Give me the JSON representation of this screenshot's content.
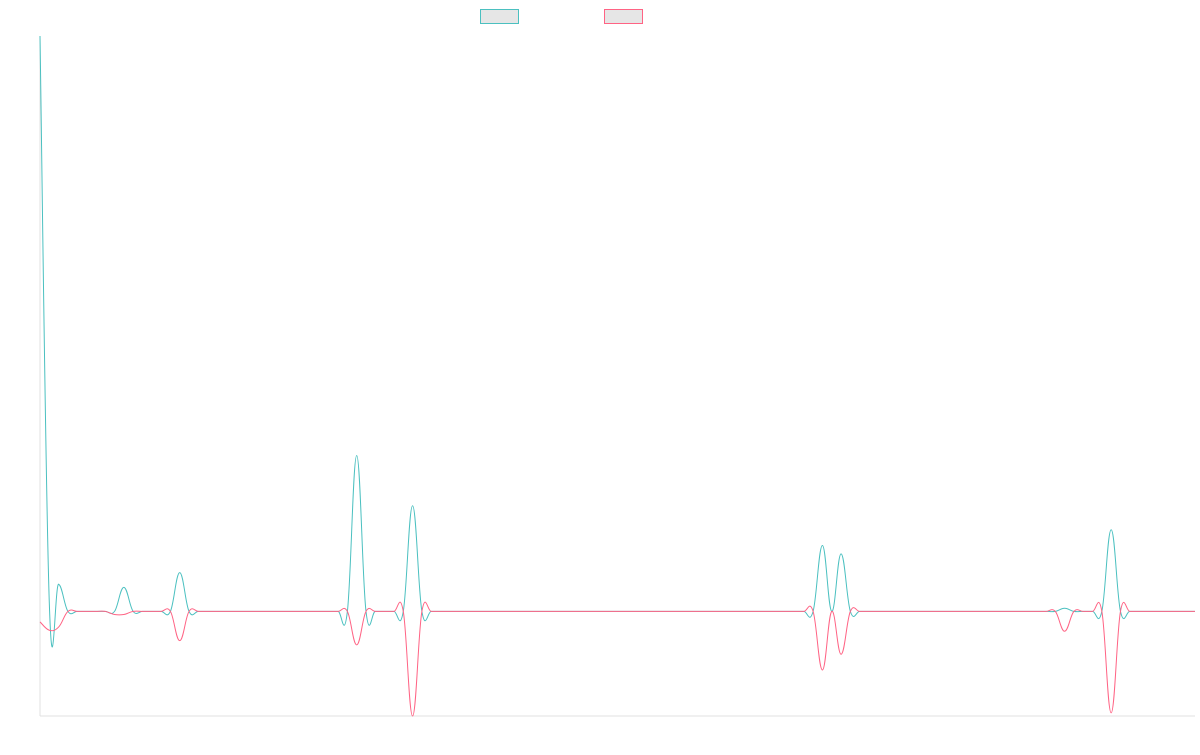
{
  "chart_data": {
    "type": "line",
    "title": "",
    "xlabel": "",
    "ylabel": "",
    "x": [
      0,
      1,
      2,
      3,
      4,
      5,
      6,
      7,
      8,
      9,
      10,
      11,
      12,
      13,
      14,
      15,
      16,
      17,
      18,
      19,
      20,
      21,
      22,
      23,
      24,
      25,
      26,
      27,
      28,
      29,
      30,
      31,
      32,
      33,
      34,
      35,
      36,
      37,
      38,
      39,
      40,
      41,
      42,
      43,
      44,
      45,
      46,
      47,
      48,
      49,
      50,
      51,
      52,
      53,
      54,
      55,
      56,
      57,
      58,
      59,
      60,
      61,
      62,
      63,
      64,
      65,
      66,
      67,
      68,
      69,
      70,
      71,
      72,
      73,
      74,
      75,
      76,
      77,
      78,
      79,
      80,
      81,
      82,
      83,
      84,
      85,
      86,
      87,
      88,
      89,
      90,
      91,
      92,
      93,
      94,
      95,
      96,
      97,
      98,
      99,
      100,
      101,
      102,
      103,
      104,
      105,
      106,
      107,
      108,
      109,
      110,
      111,
      112,
      113,
      114,
      115,
      116,
      117,
      118,
      119,
      120,
      121,
      122,
      123,
      124
    ],
    "ylim": [
      -100,
      550
    ],
    "grid": false,
    "legend_position": "top-center",
    "series": [
      {
        "name": "",
        "color": "#4bc0c0",
        "fill": "#e6e6e6",
        "values": [
          550,
          8,
          26,
          0,
          0,
          0,
          0,
          0,
          0,
          23,
          0,
          0,
          0,
          0,
          0,
          37,
          0,
          0,
          0,
          0,
          0,
          0,
          0,
          0,
          0,
          0,
          0,
          0,
          0,
          0,
          0,
          0,
          0,
          0,
          149,
          0,
          0,
          0,
          0,
          0,
          101,
          0,
          0,
          0,
          0,
          0,
          0,
          0,
          0,
          0,
          0,
          0,
          0,
          0,
          0,
          0,
          0,
          0,
          0,
          0,
          0,
          0,
          0,
          0,
          0,
          0,
          0,
          0,
          0,
          0,
          0,
          0,
          0,
          0,
          0,
          0,
          0,
          0,
          0,
          0,
          0,
          0,
          0,
          0,
          63,
          0,
          55,
          0,
          0,
          0,
          0,
          0,
          0,
          0,
          0,
          0,
          0,
          0,
          0,
          0,
          0,
          0,
          0,
          0,
          0,
          0,
          0,
          0,
          0,
          0,
          3,
          0,
          0,
          0,
          0,
          78,
          0,
          0,
          0,
          0,
          0,
          0,
          0,
          0,
          0
        ]
      },
      {
        "name": "",
        "color": "#ff6384",
        "fill": "#e6e6e6",
        "values": [
          -10,
          -18,
          -15,
          0,
          0,
          0,
          0,
          0,
          -3,
          -3,
          0,
          0,
          0,
          0,
          0,
          -28,
          0,
          0,
          0,
          0,
          0,
          0,
          0,
          0,
          0,
          0,
          0,
          0,
          0,
          0,
          0,
          0,
          0,
          0,
          -32,
          0,
          0,
          0,
          0,
          0,
          -100,
          0,
          0,
          0,
          0,
          0,
          0,
          0,
          0,
          0,
          0,
          0,
          0,
          0,
          0,
          0,
          0,
          0,
          0,
          0,
          0,
          0,
          0,
          0,
          0,
          0,
          0,
          0,
          0,
          0,
          0,
          0,
          0,
          0,
          0,
          0,
          0,
          0,
          0,
          0,
          0,
          0,
          0,
          0,
          -56,
          0,
          -41,
          0,
          0,
          0,
          0,
          0,
          0,
          0,
          0,
          0,
          0,
          0,
          0,
          0,
          0,
          0,
          0,
          0,
          0,
          0,
          0,
          0,
          0,
          0,
          -19,
          0,
          0,
          0,
          0,
          -97,
          0,
          0,
          0,
          0,
          0,
          0,
          0,
          0,
          0
        ]
      }
    ]
  }
}
